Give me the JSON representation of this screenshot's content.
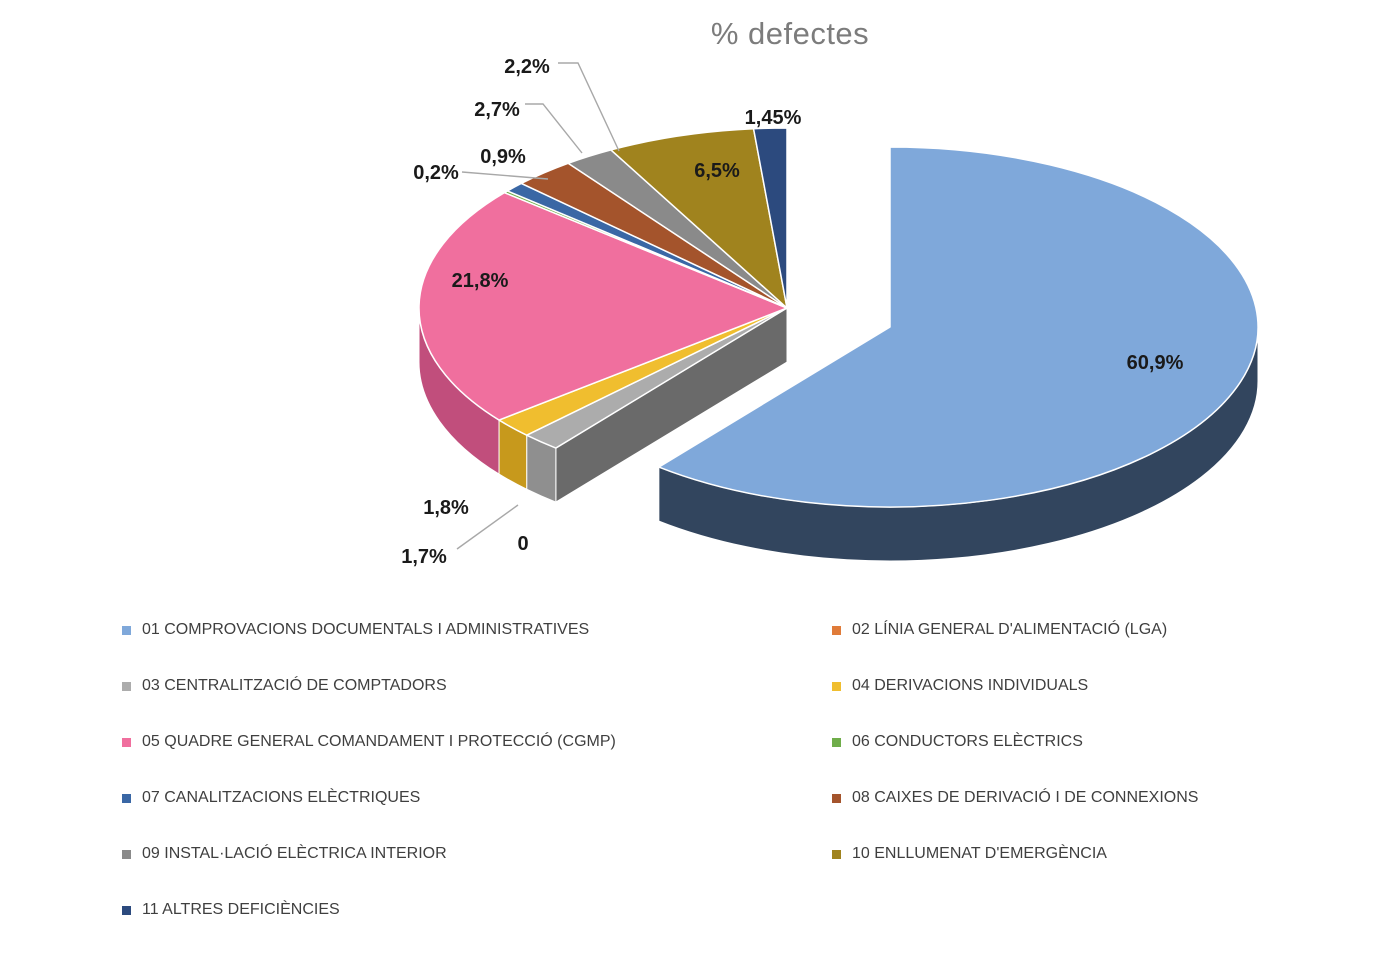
{
  "chart_data": {
    "type": "pie",
    "style": "3d-exploded",
    "title": "% defectes",
    "title_color": "#7c7c7c",
    "legend_position": "bottom-two-columns",
    "grid": false,
    "categories": [
      "01 COMPROVACIONS DOCUMENTALS I ADMINISTRATIVES",
      "02 LÍNIA GENERAL D'ALIMENTACIÓ (LGA)",
      "03 CENTRALITZACIÓ DE COMPTADORS",
      "04 DERIVACIONS INDIVIDUALS",
      "05 QUADRE GENERAL COMANDAMENT I PROTECCIÓ (CGMP)",
      "06 CONDUCTORS ELÈCTRICS",
      "07 CANALITZACIONS ELÈCTRIQUES",
      "08 CAIXES DE DERIVACIÓ I DE CONNEXIONS",
      "09 INSTAL·LACIÓ ELÈCTRICA INTERIOR",
      "10 ENLLUMENAT D'EMERGÈNCIA",
      "11 ALTRES DEFICIÈNCIES"
    ],
    "values": [
      60.9,
      0,
      1.7,
      1.8,
      21.8,
      0.2,
      0.9,
      2.7,
      2.2,
      6.5,
      1.45
    ],
    "labels": [
      "60,9%",
      "0",
      "1,7%",
      "1,8%",
      "21,8%",
      "0,2%",
      "0,9%",
      "2,7%",
      "2,2%",
      "6,5%",
      "1,45%"
    ],
    "colors": [
      "#7FA8DA",
      "#E07B39",
      "#ACACAC",
      "#F0BE2F",
      "#F06F9E",
      "#6FAD4A",
      "#3A67A5",
      "#A4542C",
      "#8A8A8A",
      "#A0831E",
      "#2C4A7E"
    ],
    "side_colors": [
      "#32455E",
      "#A85A26",
      "#8F8F8F",
      "#C7991C",
      "#C14E7C",
      "#558539",
      "#2C4F80",
      "#7E4022",
      "#696969",
      "#7B6416",
      "#21385F"
    ],
    "wall_color": "#6A6A6A",
    "leader_color": "#A8A8A8",
    "exploded_index": 0
  }
}
